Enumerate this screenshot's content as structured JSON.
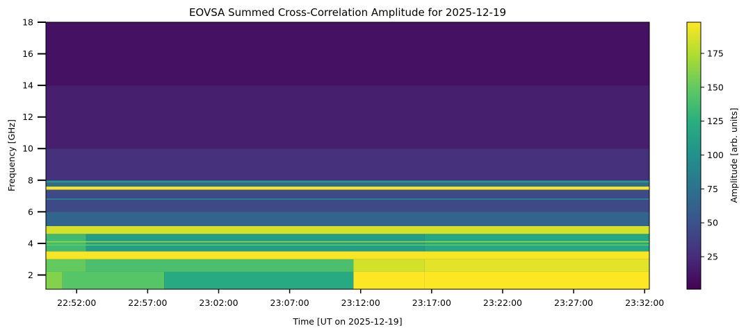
{
  "chart_data": {
    "type": "heatmap",
    "title": "EOVSA Summed Cross-Correlation Amplitude for 2025-12-19",
    "xlabel": "Time [UT on 2025-12-19]",
    "ylabel": "Frequency [GHz]",
    "colorbar_label": "Amplitude [arb. units]",
    "colormap": "viridis",
    "xlim": [
      "22:49:50",
      "23:32:20"
    ],
    "ylim": [
      1.1,
      18
    ],
    "clim": [
      1,
      198
    ],
    "x_ticks": [
      "22:52:00",
      "22:57:00",
      "23:02:00",
      "23:07:00",
      "23:12:00",
      "23:17:00",
      "23:22:00",
      "23:27:00",
      "23:32:00"
    ],
    "y_ticks": [
      2,
      4,
      6,
      8,
      10,
      12,
      14,
      16,
      18
    ],
    "colorbar_ticks": [
      25,
      50,
      75,
      100,
      125,
      150,
      175
    ],
    "bands": [
      {
        "from_ghz": 1.1,
        "to_ghz": 2.2,
        "segments": [
          {
            "start": "22:49:50",
            "end": "22:51:00",
            "amp": 160
          },
          {
            "start": "22:51:00",
            "end": "22:58:10",
            "amp": 145
          },
          {
            "start": "22:58:10",
            "end": "23:11:30",
            "amp": 120
          },
          {
            "start": "23:11:30",
            "end": "23:16:30",
            "amp": 198
          },
          {
            "start": "23:16:30",
            "end": "23:32:20",
            "amp": 198
          }
        ]
      },
      {
        "from_ghz": 2.2,
        "to_ghz": 3.0,
        "segments": [
          {
            "start": "22:49:50",
            "end": "22:52:40",
            "amp": 150
          },
          {
            "start": "22:52:40",
            "end": "23:11:30",
            "amp": 140
          },
          {
            "start": "23:11:30",
            "end": "23:16:30",
            "amp": 185
          },
          {
            "start": "23:16:30",
            "end": "23:32:20",
            "amp": 190
          }
        ]
      },
      {
        "from_ghz": 3.0,
        "to_ghz": 3.5,
        "segments": [
          {
            "start": "22:49:50",
            "end": "23:32:20",
            "amp": 196
          }
        ]
      },
      {
        "from_ghz": 3.5,
        "to_ghz": 4.6,
        "segments": [
          {
            "start": "22:49:50",
            "end": "22:52:40",
            "amp": 135
          },
          {
            "start": "22:52:40",
            "end": "23:16:30",
            "amp": 110
          },
          {
            "start": "23:16:30",
            "end": "23:32:20",
            "amp": 118
          }
        ]
      },
      {
        "from_ghz": 4.6,
        "to_ghz": 5.1,
        "segments": [
          {
            "start": "22:49:50",
            "end": "23:32:20",
            "amp": 185
          }
        ]
      },
      {
        "from_ghz": 5.1,
        "to_ghz": 6.0,
        "segments": [
          {
            "start": "22:49:50",
            "end": "23:32:20",
            "amp": 65
          }
        ]
      },
      {
        "from_ghz": 6.0,
        "to_ghz": 7.4,
        "segments": [
          {
            "start": "22:49:50",
            "end": "23:32:20",
            "amp": 45
          }
        ]
      },
      {
        "from_ghz": 7.4,
        "to_ghz": 7.6,
        "segments": [
          {
            "start": "22:49:50",
            "end": "23:32:20",
            "amp": 196
          }
        ]
      },
      {
        "from_ghz": 7.6,
        "to_ghz": 8.0,
        "segments": [
          {
            "start": "22:49:50",
            "end": "23:32:20",
            "amp": 70
          }
        ]
      },
      {
        "from_ghz": 8.0,
        "to_ghz": 10.0,
        "segments": [
          {
            "start": "22:49:50",
            "end": "23:32:20",
            "amp": 28
          }
        ]
      },
      {
        "from_ghz": 10.0,
        "to_ghz": 14.0,
        "segments": [
          {
            "start": "22:49:50",
            "end": "23:32:20",
            "amp": 18
          }
        ]
      },
      {
        "from_ghz": 14.0,
        "to_ghz": 18.0,
        "segments": [
          {
            "start": "22:49:50",
            "end": "23:32:20",
            "amp": 10
          }
        ]
      }
    ],
    "lines": [
      {
        "ghz": 6.8,
        "amp": 100
      },
      {
        "ghz": 7.9,
        "amp": 120
      },
      {
        "ghz": 4.1,
        "amp": 170
      },
      {
        "ghz": 3.9,
        "amp": 150
      }
    ]
  }
}
